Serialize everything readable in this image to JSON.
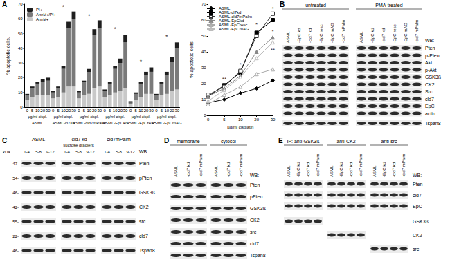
{
  "panel_labels": [
    "A",
    "B",
    "C",
    "D",
    "E"
  ],
  "chart_data": [
    {
      "type": "bar",
      "stacked": true,
      "categories": [
        "0",
        "5",
        "10",
        "20",
        "30",
        "0",
        "5",
        "10",
        "20",
        "30",
        "0",
        "5",
        "10",
        "20",
        "30",
        "0",
        "5",
        "10",
        "20",
        "30",
        "0",
        "5",
        "10",
        "20",
        "30",
        "0",
        "5",
        "10",
        "20",
        "30"
      ],
      "groups": [
        "ASML",
        "ASML-cl7kd",
        "ASML-cld7mPalm",
        "ASML-EpCkd",
        "ASML-EpCresc",
        "ASML-EpCmAG"
      ],
      "group_unit_label": "µg/ml cispl.",
      "y_label": "% apoptotic cells.",
      "ylim": [
        0,
        70
      ],
      "yticks": [
        0,
        10,
        20,
        30,
        40,
        50,
        60,
        70
      ],
      "legend": "upper left",
      "series": [
        {
          "name": "AnnV+",
          "color": "#c8c8c8",
          "values": [
            5,
            7,
            8,
            8,
            8,
            6,
            7,
            10,
            14,
            14,
            6,
            8,
            9,
            13,
            14,
            7,
            8,
            10,
            11,
            13,
            2,
            5,
            7,
            9,
            9,
            5,
            8,
            9,
            11,
            12
          ]
        },
        {
          "name": "AnnV+/PI+",
          "color": "#7a7a7a",
          "values": [
            3,
            6,
            8,
            9,
            10,
            4,
            6,
            16,
            40,
            46,
            4,
            9,
            15,
            36,
            40,
            4,
            8,
            16,
            19,
            31,
            1,
            4,
            9,
            13,
            15,
            3,
            8,
            13,
            20,
            28
          ]
        },
        {
          "name": "PI+",
          "color": "#1e1e1e",
          "values": [
            1,
            1,
            1,
            2,
            2,
            1,
            1,
            2,
            4,
            5,
            1,
            1,
            2,
            4,
            5,
            1,
            1,
            2,
            3,
            5,
            1,
            1,
            1,
            2,
            3,
            1,
            1,
            2,
            3,
            4
          ]
        }
      ],
      "annotations": [
        {
          "text": "*",
          "position": 7,
          "y": 68
        },
        {
          "text": "*",
          "position": 12,
          "y": 62
        },
        {
          "text": "*",
          "position": 17,
          "y": 53
        },
        {
          "text": "*",
          "position": 22,
          "y": 31
        },
        {
          "text": "*",
          "position": 27,
          "y": 48
        }
      ]
    },
    {
      "type": "line",
      "categories": [
        "0",
        "5",
        "10",
        "20",
        "30"
      ],
      "x_label": "µg/ml cisplatin",
      "y_label": "% apoptotic cells",
      "ylim": [
        0,
        70
      ],
      "yticks": [
        0,
        10,
        20,
        30,
        40,
        50,
        60,
        70
      ],
      "legend": "upper left",
      "series": [
        {
          "name": "ASML",
          "color": "#000000",
          "marker": "diamond",
          "values": [
            8,
            10,
            14,
            17,
            22
          ]
        },
        {
          "name": "ASML-cl7kd",
          "color": "#000000",
          "marker": "square",
          "values": [
            12,
            19,
            27,
            52,
            60
          ]
        },
        {
          "name": "ASML-cld7mPalm",
          "color": "#333333",
          "marker": "square-open",
          "values": [
            13,
            18,
            28,
            50,
            64
          ]
        },
        {
          "name": "ASML-EpCkd",
          "color": "#888888",
          "marker": "triangle",
          "values": [
            12,
            17,
            25,
            40,
            49
          ]
        },
        {
          "name": "ASML-EpCresc",
          "color": "#aaaaaa",
          "marker": "triangle-open",
          "values": [
            7,
            13,
            18,
            26,
            29
          ]
        },
        {
          "name": "ASML-EpCmAG",
          "color": "#bbbbbb",
          "marker": "triangle-open",
          "values": [
            9,
            16,
            24,
            36,
            46
          ]
        }
      ],
      "annotations": [
        {
          "text": "**",
          "x": "5",
          "y": 23
        },
        {
          "text": "*",
          "x": "10",
          "y": 32
        },
        {
          "text": "*",
          "x": "20",
          "y": 57
        },
        {
          "text": "*",
          "x": "30",
          "y": 67
        },
        {
          "text": "*",
          "x": "30",
          "y": 53
        },
        {
          "text": "**",
          "x": "30",
          "y": 41
        }
      ]
    }
  ],
  "blots": {
    "B": {
      "groups": [
        "untreated",
        "PMA-treated"
      ],
      "lanes": [
        "ASML",
        "-EpC kd",
        "-cld7 kd",
        "-EpC resc",
        "-EpC mAG",
        "-cld7 mPalm"
      ],
      "wb_label": "WB:",
      "rows": [
        "Pten",
        "p-Pten",
        "Akt",
        "p-Akt",
        "GSK3ß",
        "CK2",
        "Src",
        "cld7",
        "EpC",
        "actin",
        "Tspan8"
      ]
    },
    "C": {
      "groups": [
        "ASML",
        "-cld7 kd",
        "cld7mPalm"
      ],
      "subtitle": "sucrose gradient",
      "fractions": [
        "1-4",
        "5-8",
        "9-12"
      ],
      "kda_unit": "kDa",
      "kda": [
        "47-",
        "54-",
        "46-",
        "42-",
        "55-",
        "22-",
        "46-"
      ],
      "wb_label": "WB:",
      "rows": [
        "Pten",
        "pPten",
        "GSK3ß",
        "CK2",
        "src",
        "cld7",
        "Tspan8"
      ]
    },
    "D": {
      "groups": [
        "membrane",
        "cytosol"
      ],
      "lanes": [
        "ASML",
        "-cld7 kd",
        "-cld7 mPalm"
      ],
      "wb_label": "WB:",
      "rows": [
        "Pten",
        "pPten",
        "GSK3ß",
        "CK2",
        "src",
        "cld7",
        "Tspan8"
      ]
    },
    "E": {
      "groups": [
        "IP: anti-GSK3ß",
        "anti-CK2",
        "anti-src"
      ],
      "lanes": [
        "ASML",
        "-EpC kd",
        "-cld7 kd",
        "-cld7 mPalm"
      ],
      "wb_label": "WB:",
      "rows": [
        "Pten",
        "cld7",
        "EpC",
        "GSK3ß",
        "CK2",
        "src"
      ]
    }
  }
}
